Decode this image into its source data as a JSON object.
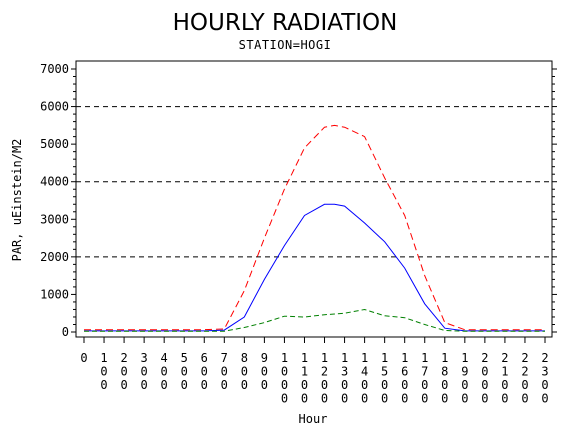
{
  "title": "HOURLY RADIATION",
  "subtitle": "STATION=HOGI",
  "chart_data": {
    "type": "line",
    "xlabel": "Hour",
    "ylabel": "PAR, uEinstein/M2",
    "xlim": [
      0,
      2300
    ],
    "ylim": [
      0,
      7000
    ],
    "y_ticks": [
      0,
      1000,
      2000,
      3000,
      4000,
      5000,
      6000,
      7000
    ],
    "y_tick_labels": [
      "0",
      "1000",
      "2000",
      "3000",
      "4000",
      "5000",
      "6000",
      "7000"
    ],
    "x_ticks": [
      0,
      100,
      200,
      300,
      400,
      500,
      600,
      700,
      800,
      900,
      1000,
      1100,
      1200,
      1300,
      1400,
      1500,
      1600,
      1700,
      1800,
      1900,
      2000,
      2100,
      2200,
      2300
    ],
    "x_tick_labels": [
      "0",
      "100",
      "200",
      "300",
      "400",
      "500",
      "600",
      "700",
      "800",
      "900",
      "1000",
      "1100",
      "1200",
      "1300",
      "1400",
      "1500",
      "1600",
      "1700",
      "1800",
      "1900",
      "2000",
      "2100",
      "2200",
      "2300"
    ],
    "reference_lines": [
      2000,
      4000,
      6000
    ],
    "x": [
      0,
      100,
      200,
      300,
      400,
      500,
      600,
      700,
      800,
      900,
      1000,
      1100,
      1200,
      1250,
      1300,
      1400,
      1500,
      1600,
      1700,
      1800,
      1900,
      2000,
      2100,
      2200,
      2300
    ],
    "series": [
      {
        "color": "#ff0000",
        "dash": "7,4",
        "values": [
          60,
          60,
          60,
          60,
          60,
          60,
          60,
          80,
          1100,
          2500,
          3800,
          4900,
          5450,
          5500,
          5450,
          5200,
          4100,
          3100,
          1500,
          250,
          60,
          60,
          60,
          60,
          60
        ]
      },
      {
        "color": "#0000ff",
        "dash": "",
        "values": [
          30,
          30,
          30,
          30,
          30,
          30,
          30,
          50,
          400,
          1400,
          2300,
          3100,
          3400,
          3400,
          3350,
          2900,
          2400,
          1700,
          750,
          100,
          30,
          30,
          30,
          30,
          30
        ]
      },
      {
        "color": "#008000",
        "dash": "5,3",
        "values": [
          20,
          20,
          20,
          20,
          20,
          20,
          20,
          20,
          120,
          250,
          420,
          400,
          460,
          480,
          500,
          600,
          430,
          380,
          200,
          40,
          20,
          20,
          20,
          20,
          20
        ]
      }
    ]
  }
}
